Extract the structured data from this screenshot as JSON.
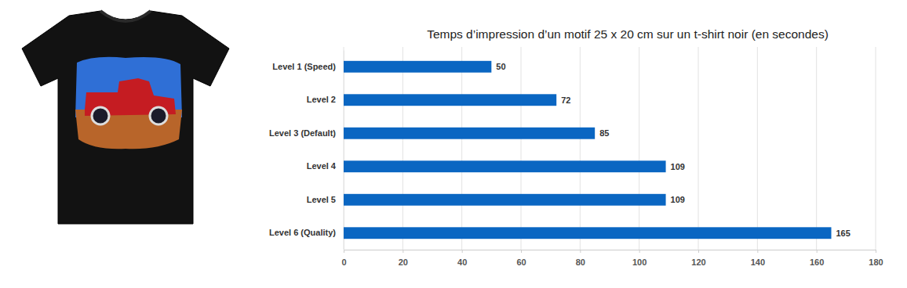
{
  "chart_data": {
    "type": "bar",
    "orientation": "horizontal",
    "title": "Temps d’impression d’un motif 25 x 20 cm sur un t-shirt noir (en secondes)",
    "categories": [
      "Level 1 (Speed)",
      "Level 2",
      "Level 3 (Default)",
      "Level 4",
      "Level 5",
      "Level 6 (Quality)"
    ],
    "values": [
      50,
      72,
      85,
      109,
      109,
      165
    ],
    "color": "#0a66c2",
    "xlim": [
      0,
      180
    ],
    "xticks": [
      0,
      20,
      40,
      60,
      80,
      100,
      120,
      140,
      160,
      180
    ],
    "grid": true,
    "data_labels": true
  }
}
